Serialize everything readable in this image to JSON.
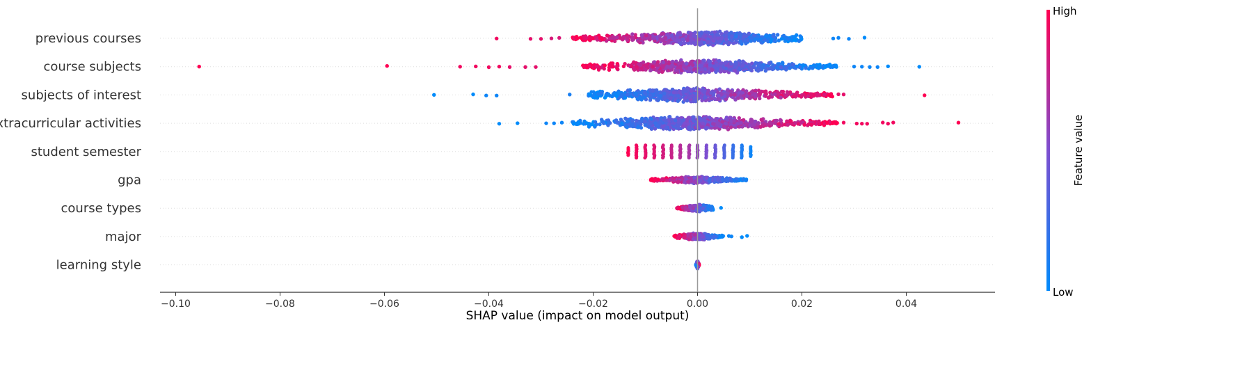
{
  "chart_data": {
    "type": "beeswarm",
    "xlabel": "SHAP value (impact on model output)",
    "xlim": [
      -0.103,
      0.057
    ],
    "xticks": [
      -0.1,
      -0.08,
      -0.06,
      -0.04,
      -0.02,
      0.0,
      0.02,
      0.04
    ],
    "xtick_labels": [
      "−0.10",
      "−0.08",
      "−0.06",
      "−0.04",
      "−0.02",
      "0.00",
      "0.02",
      "0.04"
    ],
    "colorbar": {
      "label": "Feature value",
      "high_label": "High",
      "low_label": "Low"
    },
    "colors": {
      "high": "#ff0052",
      "low": "#008bfb",
      "axis": "#333333",
      "zero_line": "#999999",
      "grid": "#dddddd"
    },
    "features": [
      {
        "name": "previous courses",
        "min": -0.0385,
        "max": 0.032,
        "core": [
          -0.024,
          0.02
        ],
        "peak": 0.002,
        "direction": -1,
        "width": 1.0,
        "outliers": [
          {
            "x": -0.0385,
            "v": 0.95
          },
          {
            "x": -0.032,
            "v": 0.9
          },
          {
            "x": -0.03,
            "v": 0.9
          },
          {
            "x": -0.028,
            "v": 0.85
          },
          {
            "x": -0.0265,
            "v": 0.85
          },
          {
            "x": 0.026,
            "v": 0.05
          },
          {
            "x": 0.027,
            "v": 0.05
          },
          {
            "x": 0.029,
            "v": 0.05
          },
          {
            "x": 0.032,
            "v": 0.0
          }
        ]
      },
      {
        "name": "course subjects",
        "min": -0.0955,
        "max": 0.043,
        "core": [
          -0.022,
          0.027
        ],
        "peak": 0.001,
        "direction": -1,
        "width": 1.0,
        "outliers": [
          {
            "x": -0.0955,
            "v": 1.0
          },
          {
            "x": -0.0595,
            "v": 1.0
          },
          {
            "x": -0.0455,
            "v": 0.95
          },
          {
            "x": -0.0425,
            "v": 0.95
          },
          {
            "x": -0.04,
            "v": 0.95
          },
          {
            "x": -0.038,
            "v": 0.95
          },
          {
            "x": -0.036,
            "v": 0.9
          },
          {
            "x": -0.033,
            "v": 0.9
          },
          {
            "x": -0.031,
            "v": 0.9
          },
          {
            "x": 0.03,
            "v": 0.05
          },
          {
            "x": 0.0315,
            "v": 0.05
          },
          {
            "x": 0.033,
            "v": 0.05
          },
          {
            "x": 0.0345,
            "v": 0.05
          },
          {
            "x": 0.0365,
            "v": 0.0
          },
          {
            "x": 0.0425,
            "v": 0.0
          }
        ]
      },
      {
        "name": "subjects of interest",
        "min": -0.0505,
        "max": 0.0435,
        "core": [
          -0.021,
          0.026
        ],
        "peak": -0.001,
        "direction": 1,
        "width": 1.0,
        "outliers": [
          {
            "x": -0.0505,
            "v": 0.0
          },
          {
            "x": -0.043,
            "v": 0.0
          },
          {
            "x": -0.0405,
            "v": 0.05
          },
          {
            "x": -0.0385,
            "v": 0.05
          },
          {
            "x": -0.0245,
            "v": 0.1
          },
          {
            "x": 0.027,
            "v": 0.9
          },
          {
            "x": 0.028,
            "v": 0.9
          },
          {
            "x": 0.0435,
            "v": 1.0
          }
        ]
      },
      {
        "name": "extracurricular activities",
        "min": -0.038,
        "max": 0.05,
        "core": [
          -0.024,
          0.027
        ],
        "peak": -0.001,
        "direction": 1,
        "width": 1.0,
        "outliers": [
          {
            "x": -0.038,
            "v": 0.0
          },
          {
            "x": -0.0345,
            "v": 0.0
          },
          {
            "x": -0.029,
            "v": 0.05
          },
          {
            "x": -0.0275,
            "v": 0.05
          },
          {
            "x": -0.026,
            "v": 0.05
          },
          {
            "x": 0.028,
            "v": 0.95
          },
          {
            "x": 0.0305,
            "v": 0.95
          },
          {
            "x": 0.0315,
            "v": 0.95
          },
          {
            "x": 0.0325,
            "v": 0.95
          },
          {
            "x": 0.0355,
            "v": 0.95
          },
          {
            "x": 0.0365,
            "v": 0.95
          },
          {
            "x": 0.0375,
            "v": 0.95
          },
          {
            "x": 0.05,
            "v": 1.0
          }
        ]
      },
      {
        "name": "student semester",
        "type": "discrete",
        "columns": [
          -0.0133,
          -0.0117,
          -0.01,
          -0.0083,
          -0.0066,
          -0.005,
          -0.0033,
          -0.0016,
          0.0,
          0.0017,
          0.0034,
          0.0051,
          0.0068,
          0.0085,
          0.0102
        ],
        "column_values": [
          1.0,
          0.95,
          0.9,
          0.87,
          0.83,
          0.78,
          0.72,
          0.66,
          0.58,
          0.5,
          0.42,
          0.32,
          0.22,
          0.12,
          0.05
        ],
        "column_heights": [
          0.35,
          0.6,
          0.6,
          0.6,
          0.6,
          0.6,
          0.6,
          0.6,
          0.6,
          0.6,
          0.6,
          0.6,
          0.6,
          0.6,
          0.45
        ]
      },
      {
        "name": "gpa",
        "min": -0.009,
        "max": 0.0095,
        "core": [
          -0.009,
          0.0095
        ],
        "peak": 0.0,
        "direction": -1,
        "width": 0.5
      },
      {
        "name": "course types",
        "min": -0.004,
        "max": 0.0045,
        "core": [
          -0.004,
          0.003
        ],
        "peak": 0.0003,
        "direction": -1,
        "width": 0.5,
        "outliers": [
          {
            "x": 0.0045,
            "v": 0.0
          }
        ]
      },
      {
        "name": "major",
        "min": -0.0045,
        "max": 0.0095,
        "core": [
          -0.0045,
          0.005
        ],
        "peak": 0.0,
        "direction": -1,
        "width": 0.5,
        "outliers": [
          {
            "x": 0.006,
            "v": 0.05
          },
          {
            "x": 0.0065,
            "v": 0.05
          },
          {
            "x": 0.0085,
            "v": 0.0
          },
          {
            "x": 0.0095,
            "v": 0.0
          }
        ]
      },
      {
        "name": "learning style",
        "min": -0.0003,
        "max": 0.0003,
        "core": [
          -0.0003,
          0.0003
        ],
        "peak": 0.0,
        "direction": 1,
        "width": 0.55
      }
    ]
  }
}
